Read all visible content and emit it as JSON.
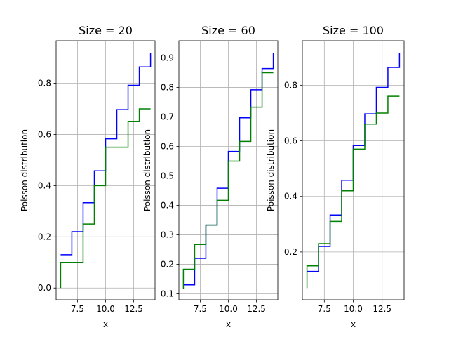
{
  "chart_data": [
    {
      "type": "line",
      "title": "Size = 20",
      "xlabel": "x",
      "ylabel": "Poisson distribution",
      "xlim": [
        5.6,
        14.4
      ],
      "ylim": [
        -0.046,
        0.966
      ],
      "xticks": [
        7.5,
        10.0,
        12.5
      ],
      "xtick_labels": [
        "7.5",
        "10.0",
        "12.5"
      ],
      "yticks": [
        0.0,
        0.2,
        0.4,
        0.6,
        0.8
      ],
      "ytick_labels": [
        "0.0",
        "0.2",
        "0.4",
        "0.6",
        "0.8"
      ],
      "grid": true,
      "series": [
        {
          "color": "#0000ff",
          "x": [
            6,
            7,
            8,
            9,
            10,
            11,
            12,
            13,
            14
          ],
          "values": [
            0.13,
            0.22,
            0.333,
            0.458,
            0.583,
            0.697,
            0.792,
            0.864,
            0.917
          ]
        },
        {
          "color": "#008000",
          "x": [
            6,
            7,
            8,
            9,
            10,
            11,
            12,
            13,
            14
          ],
          "values": [
            0.1,
            0.1,
            0.25,
            0.4,
            0.55,
            0.55,
            0.65,
            0.7,
            0.7
          ],
          "start_value": 0.0
        }
      ]
    },
    {
      "type": "line",
      "title": "Size = 60",
      "xlabel": "x",
      "ylabel": "Poisson distribution",
      "xlim": [
        5.6,
        14.4
      ],
      "ylim": [
        0.0795,
        0.9585
      ],
      "xticks": [
        7.5,
        10.0,
        12.5
      ],
      "xtick_labels": [
        "7.5",
        "10.0",
        "12.5"
      ],
      "yticks": [
        0.1,
        0.2,
        0.3,
        0.4,
        0.5,
        0.6,
        0.7,
        0.8,
        0.9
      ],
      "ytick_labels": [
        "0.1",
        "0.2",
        "0.3",
        "0.4",
        "0.5",
        "0.6",
        "0.7",
        "0.8",
        "0.9"
      ],
      "grid": true,
      "series": [
        {
          "color": "#0000ff",
          "x": [
            6,
            7,
            8,
            9,
            10,
            11,
            12,
            13,
            14
          ],
          "values": [
            0.13,
            0.22,
            0.333,
            0.458,
            0.583,
            0.697,
            0.792,
            0.864,
            0.917
          ]
        },
        {
          "color": "#008000",
          "x": [
            6,
            7,
            8,
            9,
            10,
            11,
            12,
            13,
            14
          ],
          "values": [
            0.183,
            0.267,
            0.333,
            0.417,
            0.55,
            0.617,
            0.733,
            0.85,
            0.85
          ],
          "start_value": 0.117
        }
      ]
    },
    {
      "type": "line",
      "title": "Size = 100",
      "xlabel": "x",
      "ylabel": "Poisson distribution",
      "xlim": [
        5.6,
        14.4
      ],
      "ylim": [
        0.028,
        0.96
      ],
      "xticks": [
        7.5,
        10.0,
        12.5
      ],
      "xtick_labels": [
        "7.5",
        "10.0",
        "12.5"
      ],
      "yticks": [
        0.2,
        0.4,
        0.6,
        0.8
      ],
      "ytick_labels": [
        "0.2",
        "0.4",
        "0.6",
        "0.8"
      ],
      "grid": true,
      "series": [
        {
          "color": "#0000ff",
          "x": [
            6,
            7,
            8,
            9,
            10,
            11,
            12,
            13,
            14
          ],
          "values": [
            0.13,
            0.22,
            0.333,
            0.458,
            0.583,
            0.697,
            0.792,
            0.864,
            0.917
          ]
        },
        {
          "color": "#008000",
          "x": [
            6,
            7,
            8,
            9,
            10,
            11,
            12,
            13,
            14
          ],
          "values": [
            0.15,
            0.23,
            0.31,
            0.42,
            0.57,
            0.66,
            0.7,
            0.76,
            0.76
          ],
          "start_value": 0.07
        }
      ]
    }
  ]
}
